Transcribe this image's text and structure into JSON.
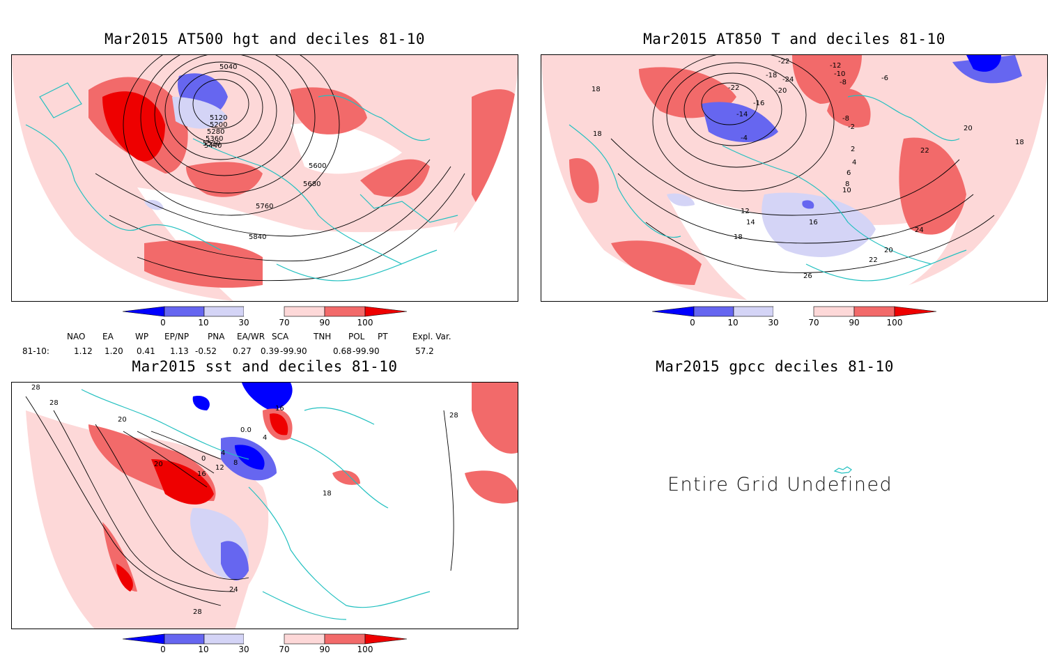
{
  "panels": {
    "z500": {
      "title": "Mar2015 AT500 hgt and deciles 81-10",
      "contour_labels": [
        "5040",
        "5120",
        "5200",
        "5280",
        "5360",
        "5440",
        "5520",
        "5600",
        "5680",
        "5760",
        "5840"
      ]
    },
    "t850": {
      "title": "Mar2015 AT850 T and deciles 81-10",
      "contour_labels": [
        "-22",
        "-24",
        "-18",
        "-10",
        "-12",
        "-8",
        "-6",
        "-22",
        "-20",
        "-16",
        "-14",
        "-8",
        "-4",
        "-2",
        "2",
        "4",
        "6",
        "8",
        "10",
        "12",
        "14",
        "16",
        "18",
        "20",
        "22",
        "24",
        "26",
        "18",
        "20",
        "18",
        "22",
        "18"
      ]
    },
    "sst": {
      "title": "Mar2015 sst and deciles 81-10",
      "contour_labels": [
        "28",
        "28",
        "20",
        "20",
        "16",
        "12",
        "8",
        "4",
        "0",
        "4",
        "0.0",
        "16",
        "18",
        "24",
        "28",
        "28"
      ]
    },
    "gpcc": {
      "title": "Mar2015 gpcc deciles 81-10",
      "message": "Entire Grid Undefined"
    }
  },
  "colorbar": {
    "labels": [
      "0",
      "10",
      "30",
      "70",
      "90",
      "100"
    ]
  },
  "indices": {
    "row_label": "81-10:",
    "names": [
      "NAO",
      "EA",
      "WP",
      "EP/NP",
      "PNA",
      "EA/WR",
      "SCA",
      "TNH",
      "POL",
      "PT",
      "Expl. Var."
    ],
    "values": [
      "1.12",
      "1.20",
      "0.41",
      "1.13",
      "-0.52",
      "0.27",
      "0.39",
      "-99.90",
      "0.68",
      "-99.90",
      "57.2"
    ]
  },
  "colors": {
    "dark_blue": "#0000ff",
    "mid_blue": "#6666f0",
    "light_blue": "#d4d4f6",
    "light_red": "#fdd8d8",
    "mid_red": "#f26a6a",
    "dark_red": "#ee0000",
    "coast": "#22c0c0"
  }
}
